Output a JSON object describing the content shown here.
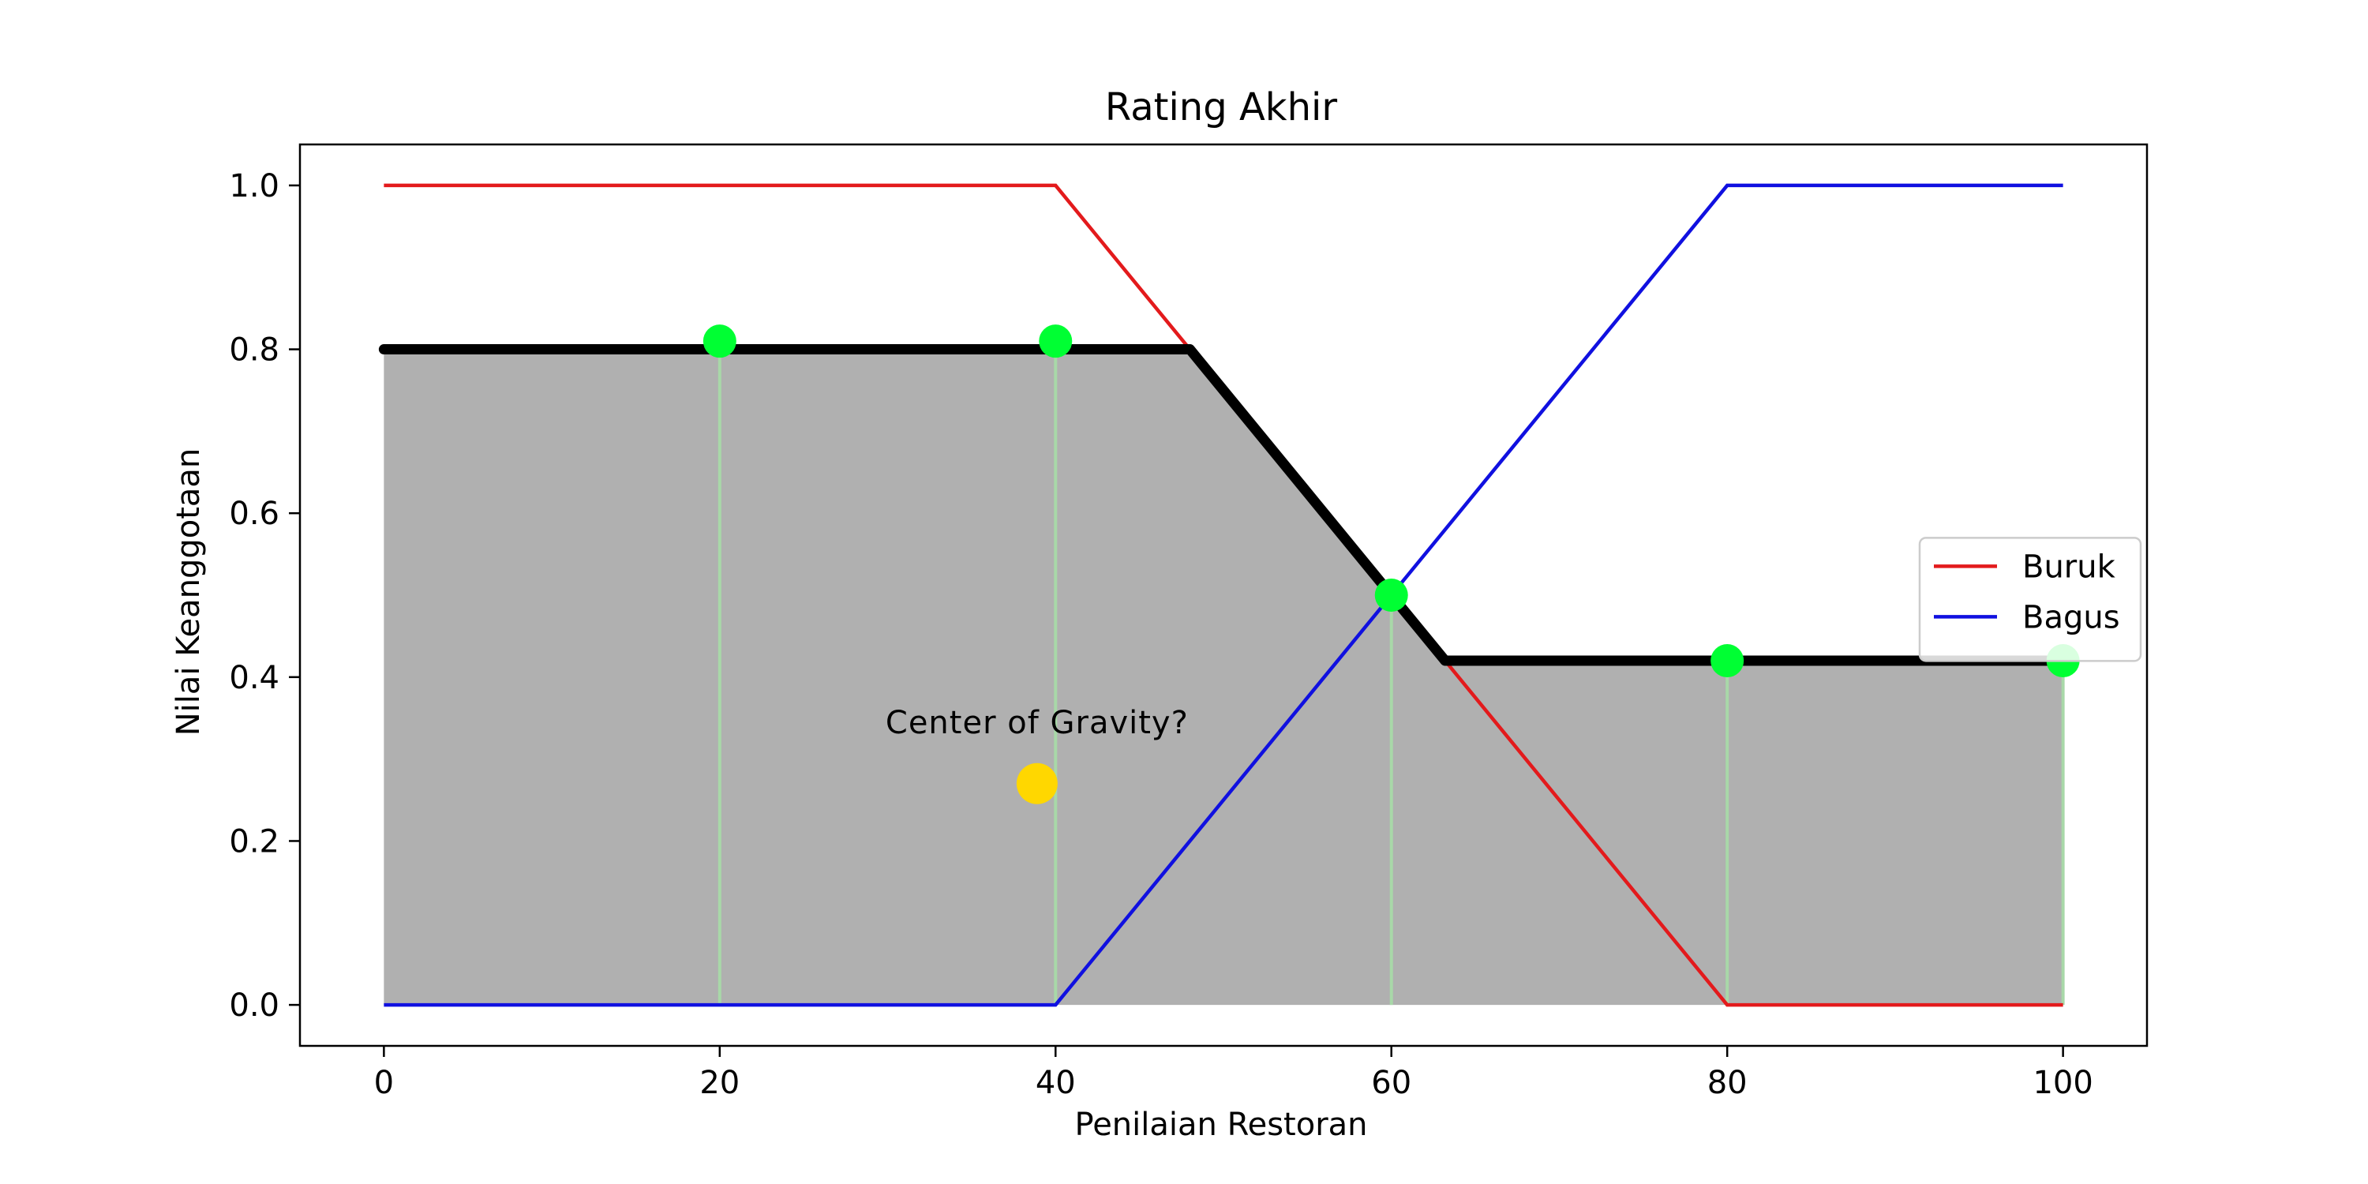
{
  "chart_data": {
    "type": "line",
    "title": "Rating Akhir",
    "xlabel": "Penilaian Restoran",
    "ylabel": "Nilai Keanggotaan",
    "xlim": [
      -5,
      105
    ],
    "ylim": [
      -0.05,
      1.05
    ],
    "xticks": [
      0,
      20,
      40,
      60,
      80,
      100
    ],
    "yticks": [
      0.0,
      0.2,
      0.4,
      0.6,
      0.8,
      1.0
    ],
    "grid": false,
    "legend_position": "center-right",
    "series": [
      {
        "name": "Buruk",
        "color": "#e31a1c",
        "x": [
          0,
          40,
          80,
          100
        ],
        "y": [
          1.0,
          1.0,
          0.0,
          0.0
        ]
      },
      {
        "name": "Bagus",
        "color": "#1010e0",
        "x": [
          0,
          40,
          80,
          100
        ],
        "y": [
          0.0,
          0.0,
          1.0,
          1.0
        ]
      }
    ],
    "aggregated": {
      "color": "#000000",
      "fill_color": "#b0b0b0",
      "x": [
        0,
        48,
        63.2,
        100
      ],
      "y": [
        0.8,
        0.8,
        0.42,
        0.42
      ]
    },
    "sample_points": {
      "color": "#00ff33",
      "x": [
        20,
        40,
        60,
        80,
        100
      ],
      "y": [
        0.81,
        0.81,
        0.5,
        0.42,
        0.42
      ]
    },
    "center_of_gravity": {
      "label": "Center of Gravity?",
      "color": "#ffd700",
      "x": 38.9,
      "y": 0.27
    }
  }
}
